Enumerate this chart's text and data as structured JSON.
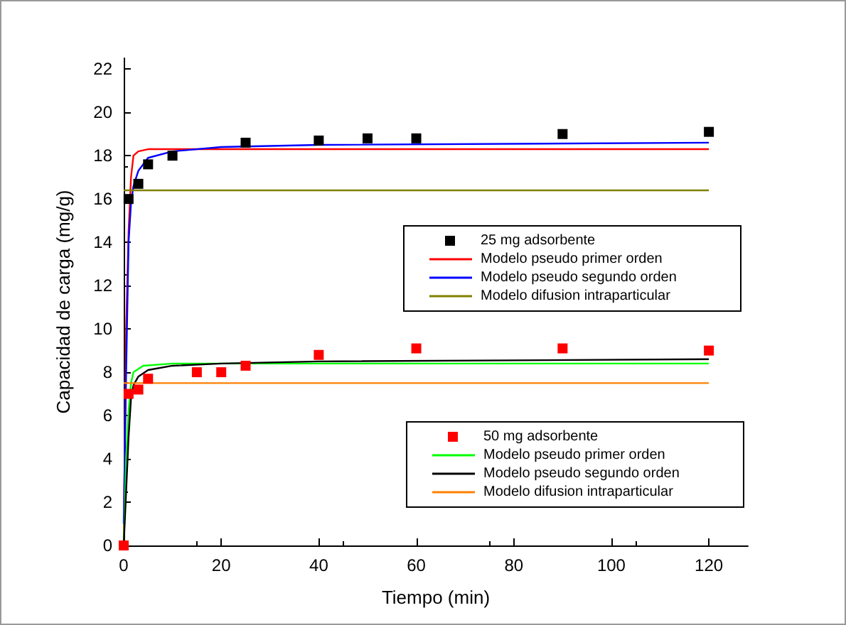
{
  "chart_data": {
    "type": "line",
    "xlabel": "Tiempo (min)",
    "ylabel": "Capacidad de carga (mg/g)",
    "xlim": [
      0,
      128
    ],
    "xticks": [
      0,
      20,
      40,
      60,
      80,
      100,
      120
    ],
    "ylim": [
      0,
      22.5
    ],
    "yticks": [
      0,
      2,
      4,
      6,
      8,
      10,
      12,
      14,
      16,
      18,
      20,
      22
    ],
    "grid": false,
    "legend": "right",
    "line_style": "solid",
    "series": [
      {
        "name": "25 mg adsorbente",
        "type": "scatter",
        "marker": "square",
        "color": "#000000",
        "x": [
          1,
          3,
          5,
          10,
          25,
          40,
          50,
          60,
          90,
          120
        ],
        "values": [
          16,
          16.7,
          17.6,
          18,
          18.6,
          18.7,
          18.8,
          18.8,
          19,
          19.1
        ]
      },
      {
        "name": "Modelo pseudo primer orden",
        "color": "#ff0000",
        "x": [
          0,
          0.5,
          1,
          1.5,
          2,
          3,
          5,
          120
        ],
        "values": [
          0,
          10,
          14.5,
          17,
          18,
          18.2,
          18.3,
          18.3
        ]
      },
      {
        "name": "Modelo pseudo segundo orden",
        "color": "#0000ff",
        "x": [
          0,
          0.5,
          1,
          1.5,
          2,
          3,
          5,
          10,
          20,
          40,
          120
        ],
        "values": [
          1,
          8,
          14,
          15.8,
          16.6,
          17.3,
          17.9,
          18.2,
          18.4,
          18.5,
          18.6
        ]
      },
      {
        "name": "Modelo difusion intraparticular",
        "color": "#808000",
        "x": [
          0,
          120
        ],
        "values": [
          16.4,
          16.4
        ]
      },
      {
        "name": "50 mg adsorbente",
        "type": "scatter",
        "marker": "square",
        "color": "#ff0000",
        "x": [
          0,
          1,
          3,
          5,
          15,
          20,
          25,
          40,
          60,
          90,
          120
        ],
        "values": [
          0,
          7,
          7.2,
          7.7,
          8,
          8,
          8.3,
          8.8,
          9.1,
          9.1,
          9
        ]
      },
      {
        "name": "Modelo pseudo primer orden",
        "color": "#00ff00",
        "x": [
          0,
          0.5,
          1,
          1.5,
          2,
          4,
          10,
          120
        ],
        "values": [
          0,
          4,
          6.2,
          7.5,
          8,
          8.3,
          8.4,
          8.4
        ]
      },
      {
        "name": "Modelo pseudo segundo orden",
        "color": "#000000",
        "x": [
          0,
          0.5,
          1,
          1.5,
          2,
          3,
          5,
          10,
          20,
          40,
          120
        ],
        "values": [
          0,
          2.5,
          5,
          6.8,
          7.4,
          7.8,
          8.1,
          8.3,
          8.4,
          8.5,
          8.6
        ]
      },
      {
        "name": "Modelo difusion intraparticular",
        "color": "#ff8000",
        "x": [
          0,
          120
        ],
        "values": [
          7.5,
          7.5
        ]
      }
    ]
  }
}
